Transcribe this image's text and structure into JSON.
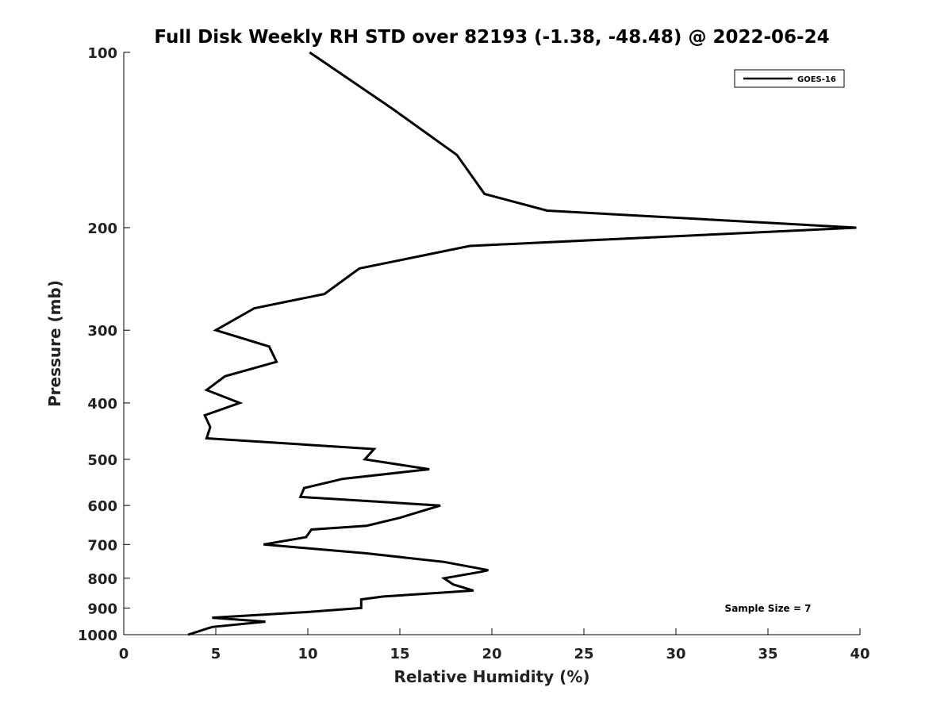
{
  "chart_data": {
    "type": "line",
    "title": "Full Disk Weekly RH STD over 82193 (-1.38, -48.48) @ 2022-06-24",
    "xlabel": "Relative Humidity (%)",
    "ylabel": "Pressure (mb)",
    "xlim": [
      0,
      40
    ],
    "ylim": [
      100,
      1000
    ],
    "yscale": "log",
    "y_reversed": true,
    "grid": false,
    "x_ticks": [
      0,
      5,
      10,
      15,
      20,
      25,
      30,
      35,
      40
    ],
    "y_ticks": [
      100,
      200,
      300,
      400,
      500,
      600,
      700,
      800,
      900,
      1000
    ],
    "legend_position": "top-right",
    "series": [
      {
        "name": "GOES-16",
        "color": "#000000",
        "points": [
          [
            10.1,
            100
          ],
          [
            14.6,
            125
          ],
          [
            18.1,
            150
          ],
          [
            19.6,
            175
          ],
          [
            23.0,
            187
          ],
          [
            39.8,
            200
          ],
          [
            18.8,
            215
          ],
          [
            12.8,
            235
          ],
          [
            10.9,
            260
          ],
          [
            7.1,
            275
          ],
          [
            5.0,
            300
          ],
          [
            7.9,
            320
          ],
          [
            8.3,
            340
          ],
          [
            5.5,
            360
          ],
          [
            4.5,
            380
          ],
          [
            6.3,
            400
          ],
          [
            4.4,
            420
          ],
          [
            4.7,
            440
          ],
          [
            4.5,
            460
          ],
          [
            13.6,
            480
          ],
          [
            13.1,
            500
          ],
          [
            16.6,
            520
          ],
          [
            11.9,
            540
          ],
          [
            9.8,
            560
          ],
          [
            9.6,
            580
          ],
          [
            17.2,
            600
          ],
          [
            15.0,
            630
          ],
          [
            13.2,
            650
          ],
          [
            10.2,
            660
          ],
          [
            9.9,
            680
          ],
          [
            7.6,
            700
          ],
          [
            13.2,
            725
          ],
          [
            17.4,
            750
          ],
          [
            19.8,
            775
          ],
          [
            19.4,
            780
          ],
          [
            17.4,
            800
          ],
          [
            17.9,
            820
          ],
          [
            19.0,
            840
          ],
          [
            14.1,
            860
          ],
          [
            12.9,
            870
          ],
          [
            12.9,
            900
          ],
          [
            9.8,
            915
          ],
          [
            4.8,
            935
          ],
          [
            7.7,
            950
          ],
          [
            4.8,
            970
          ],
          [
            3.5,
            1000
          ]
        ]
      }
    ],
    "annotation": "Sample Size = 7"
  }
}
